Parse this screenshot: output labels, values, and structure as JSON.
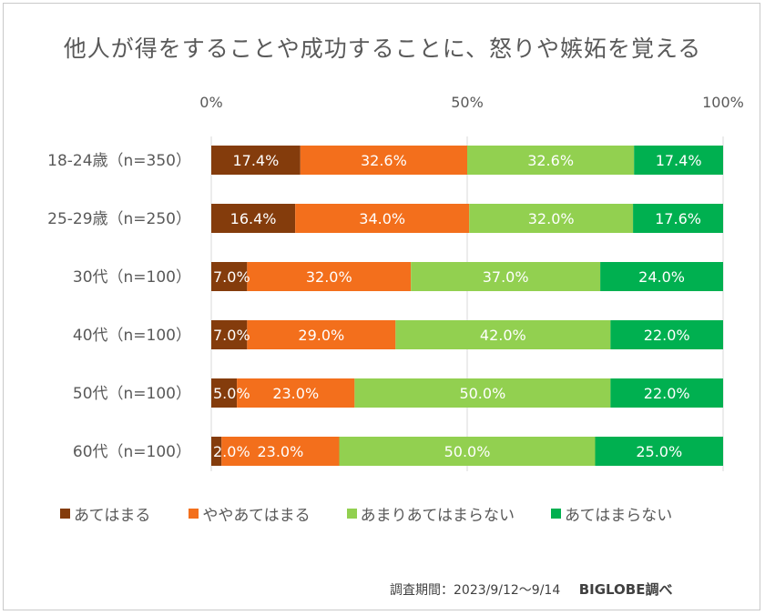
{
  "title": "他人が得をすることや成功することに、怒りや嫉妬を覚える",
  "footer": {
    "period": "調査期間：2023/9/12～9/14",
    "source": "BIGLOBE調べ"
  },
  "chart_data": {
    "type": "bar",
    "orientation": "horizontal",
    "stacked": "percent",
    "title": "他人が得をすることや成功することに、怒りや嫉妬を覚える",
    "categories": [
      "18-24歳（n=350）",
      "25-29歳（n=250）",
      "30代（n=100）",
      "40代（n=100）",
      "50代（n=100）",
      "60代（n=100）"
    ],
    "x_ticks": [
      "0%",
      "50%",
      "100%"
    ],
    "xlim": [
      0,
      100
    ],
    "grid": true,
    "legend_position": "bottom",
    "series": [
      {
        "name": "あてはまる",
        "color": "#843c0c",
        "values": [
          17.4,
          16.4,
          7.0,
          7.0,
          5.0,
          2.0
        ],
        "labels": [
          "17.4%",
          "16.4%",
          "7.0%",
          "7.0%",
          "5.0%",
          "2.0%"
        ]
      },
      {
        "name": "ややあてはまる",
        "color": "#f36f1c",
        "values": [
          32.6,
          34.0,
          32.0,
          29.0,
          23.0,
          23.0
        ],
        "labels": [
          "32.6%",
          "34.0%",
          "32.0%",
          "29.0%",
          "23.0%",
          "23.0%"
        ]
      },
      {
        "name": "あまりあてはまらない",
        "color": "#92d050",
        "values": [
          32.6,
          32.0,
          37.0,
          42.0,
          50.0,
          50.0
        ],
        "labels": [
          "32.6%",
          "32.0%",
          "37.0%",
          "42.0%",
          "50.0%",
          "50.0%"
        ]
      },
      {
        "name": "あてはまらない",
        "color": "#00b050",
        "values": [
          17.4,
          17.6,
          24.0,
          22.0,
          22.0,
          25.0
        ],
        "labels": [
          "17.4%",
          "17.6%",
          "24.0%",
          "22.0%",
          "22.0%",
          "25.0%"
        ]
      }
    ]
  }
}
